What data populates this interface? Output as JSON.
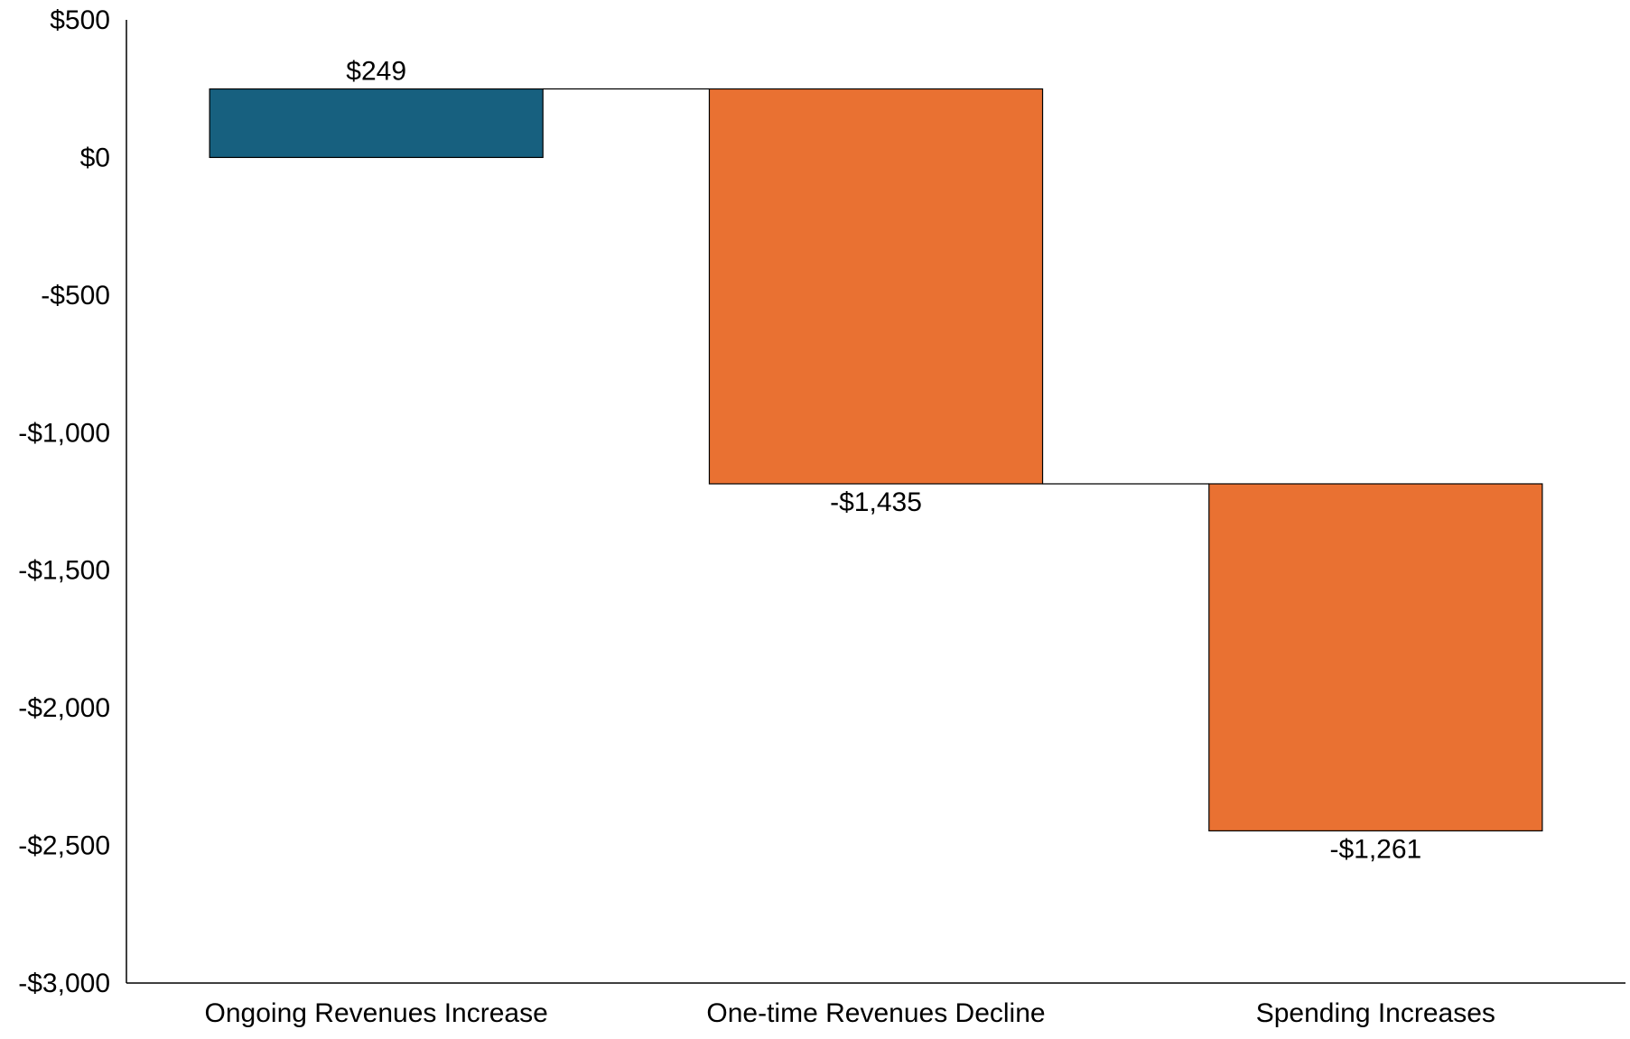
{
  "chart_data": {
    "type": "bar",
    "subtype": "waterfall",
    "categories": [
      "Ongoing Revenues Increase",
      "One-time Revenues Decline",
      "Spending Increases"
    ],
    "values": [
      249,
      -1435,
      -1261
    ],
    "data_labels": [
      "$249",
      "-$1,435",
      "-$1,261"
    ],
    "ylim": [
      -3000,
      500
    ],
    "y_ticks": [
      500,
      0,
      -500,
      -1000,
      -1500,
      -2000,
      -2500,
      -3000
    ],
    "y_tick_labels": [
      "$500",
      "$0",
      "-$500",
      "-$1,000",
      "-$1,500",
      "-$2,000",
      "-$2,500",
      "-$3,000"
    ],
    "title": "",
    "xlabel": "",
    "ylabel": "",
    "grid": false,
    "legend": "none",
    "colors": {
      "increase": "#17607f",
      "decrease": "#e97132",
      "outline": "#000000",
      "connector": "#000000"
    }
  }
}
